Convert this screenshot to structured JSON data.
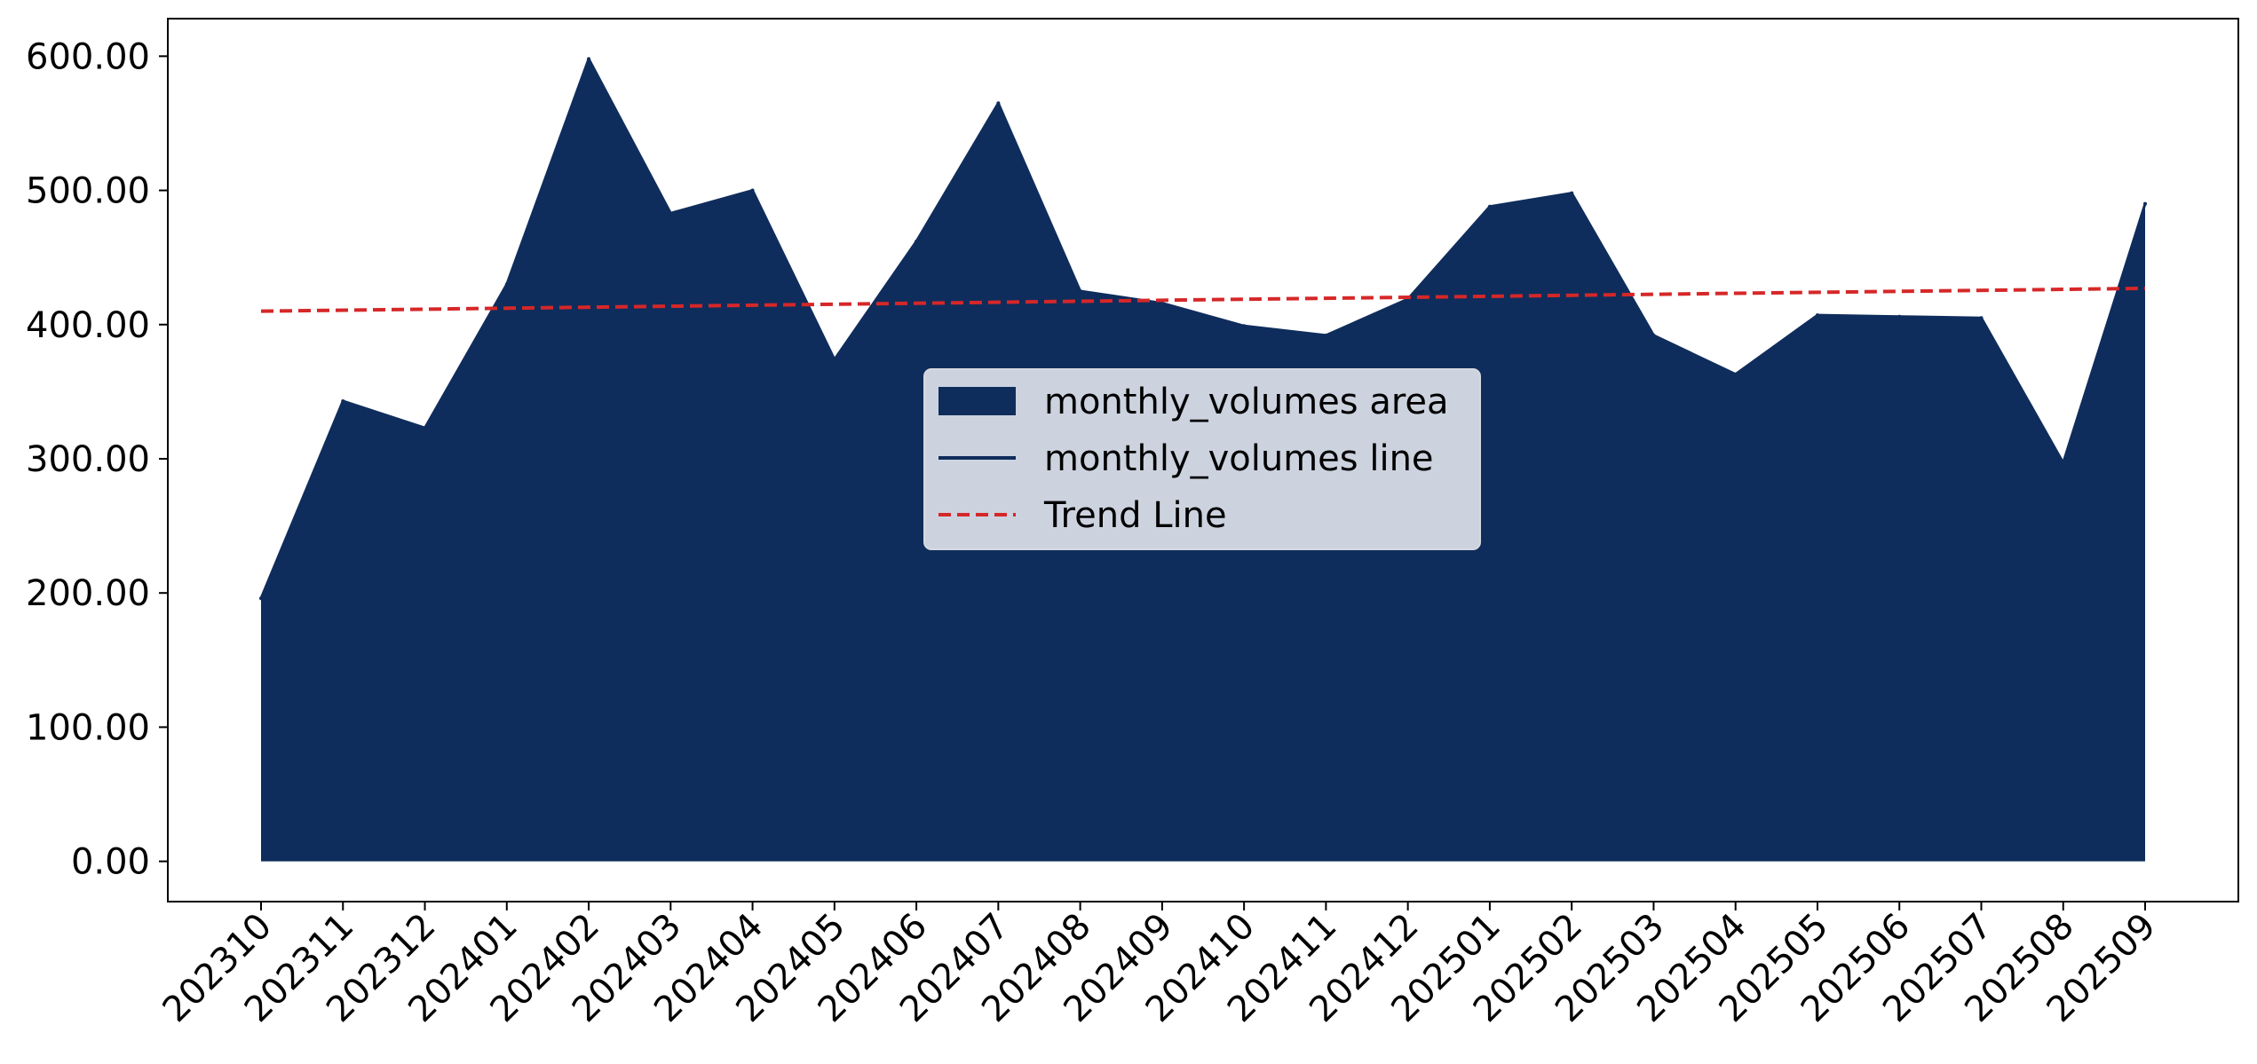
{
  "chart_data": {
    "type": "area",
    "title": "",
    "xlabel": "",
    "ylabel": "",
    "categories": [
      "202310",
      "202311",
      "202312",
      "202401",
      "202402",
      "202403",
      "202404",
      "202405",
      "202406",
      "202407",
      "202408",
      "202409",
      "202410",
      "202411",
      "202412",
      "202501",
      "202502",
      "202503",
      "202504",
      "202505",
      "202506",
      "202507",
      "202508",
      "202509"
    ],
    "series": [
      {
        "name": "monthly_volumes area",
        "kind": "area",
        "color": "#0f2d5c",
        "values": [
          196,
          343,
          323,
          430,
          598,
          483,
          500,
          374,
          462,
          565,
          425,
          416,
          399,
          392,
          419,
          488,
          498,
          392,
          363,
          407,
          406,
          405,
          297,
          490
        ]
      },
      {
        "name": "monthly_volumes line",
        "kind": "line",
        "color": "#0f2d5c",
        "values": [
          196,
          343,
          323,
          430,
          598,
          483,
          500,
          374,
          462,
          565,
          425,
          416,
          399,
          392,
          419,
          488,
          498,
          392,
          363,
          407,
          406,
          405,
          297,
          490
        ]
      },
      {
        "name": "Trend Line",
        "kind": "trend",
        "color": "#d62728",
        "start": 410,
        "end": 427
      }
    ],
    "yticks": [
      0,
      100,
      200,
      300,
      400,
      500,
      600
    ],
    "ytick_labels": [
      "0.00",
      "100.00",
      "200.00",
      "300.00",
      "400.00",
      "500.00",
      "600.00"
    ],
    "ylim": [
      -30,
      628
    ],
    "grid": false,
    "legend_position": "center"
  }
}
